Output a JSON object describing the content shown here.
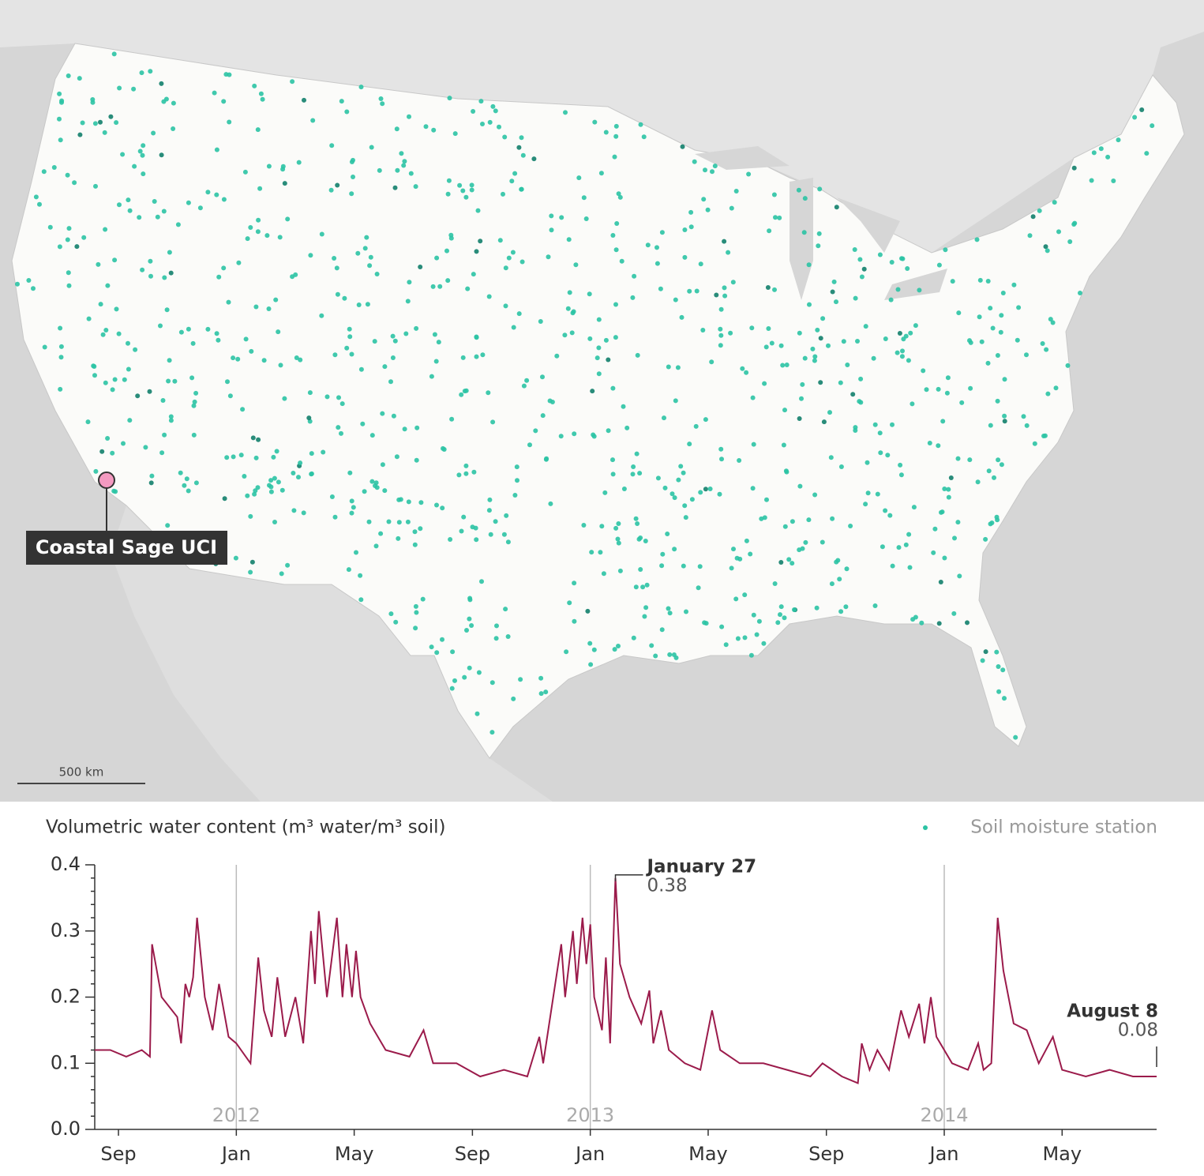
{
  "map": {
    "callout": "Coastal Sage UCI",
    "scale_label": "500 km",
    "legend_label": "Soil moisture station",
    "station_color": "#2bc3a4"
  },
  "chart_data": {
    "type": "line",
    "ylabel": "Volumetric water content (m³ water/m³ soil)",
    "color": "#9b1b4b",
    "x": [
      2011.6,
      2011.644,
      2011.689,
      2011.733,
      2011.756,
      2011.762,
      2011.789,
      2011.833,
      2011.844,
      2011.856,
      2011.867,
      2011.878,
      2011.889,
      2011.911,
      2011.933,
      2011.951,
      2011.978,
      2012.0,
      2012.04,
      2012.062,
      2012.078,
      2012.1,
      2012.116,
      2012.138,
      2012.167,
      2012.189,
      2012.211,
      2012.222,
      2012.233,
      2012.256,
      2012.284,
      2012.3,
      2012.311,
      2012.327,
      2012.338,
      2012.351,
      2012.378,
      2012.422,
      2012.489,
      2012.529,
      2012.556,
      2012.622,
      2012.689,
      2012.756,
      2012.822,
      2012.856,
      2012.867,
      2012.918,
      2012.929,
      2012.951,
      2012.962,
      2012.978,
      2012.989,
      2013.0,
      2013.011,
      2013.033,
      2013.044,
      2013.056,
      2013.071,
      2013.084,
      2013.111,
      2013.144,
      2013.167,
      2013.178,
      2013.2,
      2013.222,
      2013.267,
      2013.311,
      2013.344,
      2013.367,
      2013.422,
      2013.489,
      2013.556,
      2013.622,
      2013.656,
      2013.711,
      2013.756,
      2013.767,
      2013.789,
      2013.811,
      2013.844,
      2013.878,
      2013.9,
      2013.929,
      2013.944,
      2013.962,
      2013.978,
      2014.022,
      2014.067,
      2014.096,
      2014.111,
      2014.133,
      2014.151,
      2014.167,
      2014.196,
      2014.233,
      2014.267,
      2014.307,
      2014.333,
      2014.4,
      2014.467,
      2014.533,
      2014.6
    ],
    "values": [
      0.12,
      0.12,
      0.11,
      0.12,
      0.11,
      0.28,
      0.2,
      0.17,
      0.13,
      0.22,
      0.2,
      0.23,
      0.32,
      0.2,
      0.15,
      0.22,
      0.14,
      0.13,
      0.1,
      0.26,
      0.18,
      0.14,
      0.23,
      0.14,
      0.2,
      0.13,
      0.3,
      0.22,
      0.33,
      0.2,
      0.32,
      0.2,
      0.28,
      0.2,
      0.27,
      0.2,
      0.16,
      0.12,
      0.11,
      0.15,
      0.1,
      0.1,
      0.08,
      0.09,
      0.08,
      0.14,
      0.1,
      0.28,
      0.2,
      0.3,
      0.22,
      0.32,
      0.25,
      0.31,
      0.2,
      0.15,
      0.26,
      0.13,
      0.38,
      0.25,
      0.2,
      0.16,
      0.21,
      0.13,
      0.18,
      0.12,
      0.1,
      0.09,
      0.18,
      0.12,
      0.1,
      0.1,
      0.09,
      0.08,
      0.1,
      0.08,
      0.07,
      0.13,
      0.09,
      0.12,
      0.09,
      0.18,
      0.14,
      0.19,
      0.13,
      0.2,
      0.14,
      0.1,
      0.09,
      0.13,
      0.09,
      0.1,
      0.32,
      0.24,
      0.16,
      0.15,
      0.1,
      0.14,
      0.09,
      0.08,
      0.09,
      0.08,
      0.08
    ],
    "xlim": [
      2011.6,
      2014.6
    ],
    "xticks": [
      {
        "value": 2011.667,
        "label": "Sep"
      },
      {
        "value": 2012,
        "label": "Jan"
      },
      {
        "value": 2012.333,
        "label": "May"
      },
      {
        "value": 2012.667,
        "label": "Sep"
      },
      {
        "value": 2013,
        "label": "Jan"
      },
      {
        "value": 2013.333,
        "label": "May"
      },
      {
        "value": 2013.667,
        "label": "Sep"
      },
      {
        "value": 2014,
        "label": "Jan"
      },
      {
        "value": 2014.333,
        "label": "May"
      }
    ],
    "year_ticks": [
      2012,
      2013,
      2014
    ],
    "ylim": [
      0,
      0.4
    ],
    "yticks": [
      {
        "value": 0,
        "label": "0.0"
      },
      0.1,
      0.2,
      0.3,
      0.4
    ],
    "minor_yticks": [
      0.02,
      0.04,
      0.06,
      0.08,
      0.12,
      0.14,
      0.16,
      0.18,
      0.22,
      0.24,
      0.26,
      0.28,
      0.32,
      0.34,
      0.36,
      0.38
    ],
    "annotations": [
      {
        "label": "January 27",
        "x": 2013.071,
        "value": 0.38
      },
      {
        "label": "August 8",
        "x": 2014.6,
        "value": 0.08
      }
    ]
  }
}
